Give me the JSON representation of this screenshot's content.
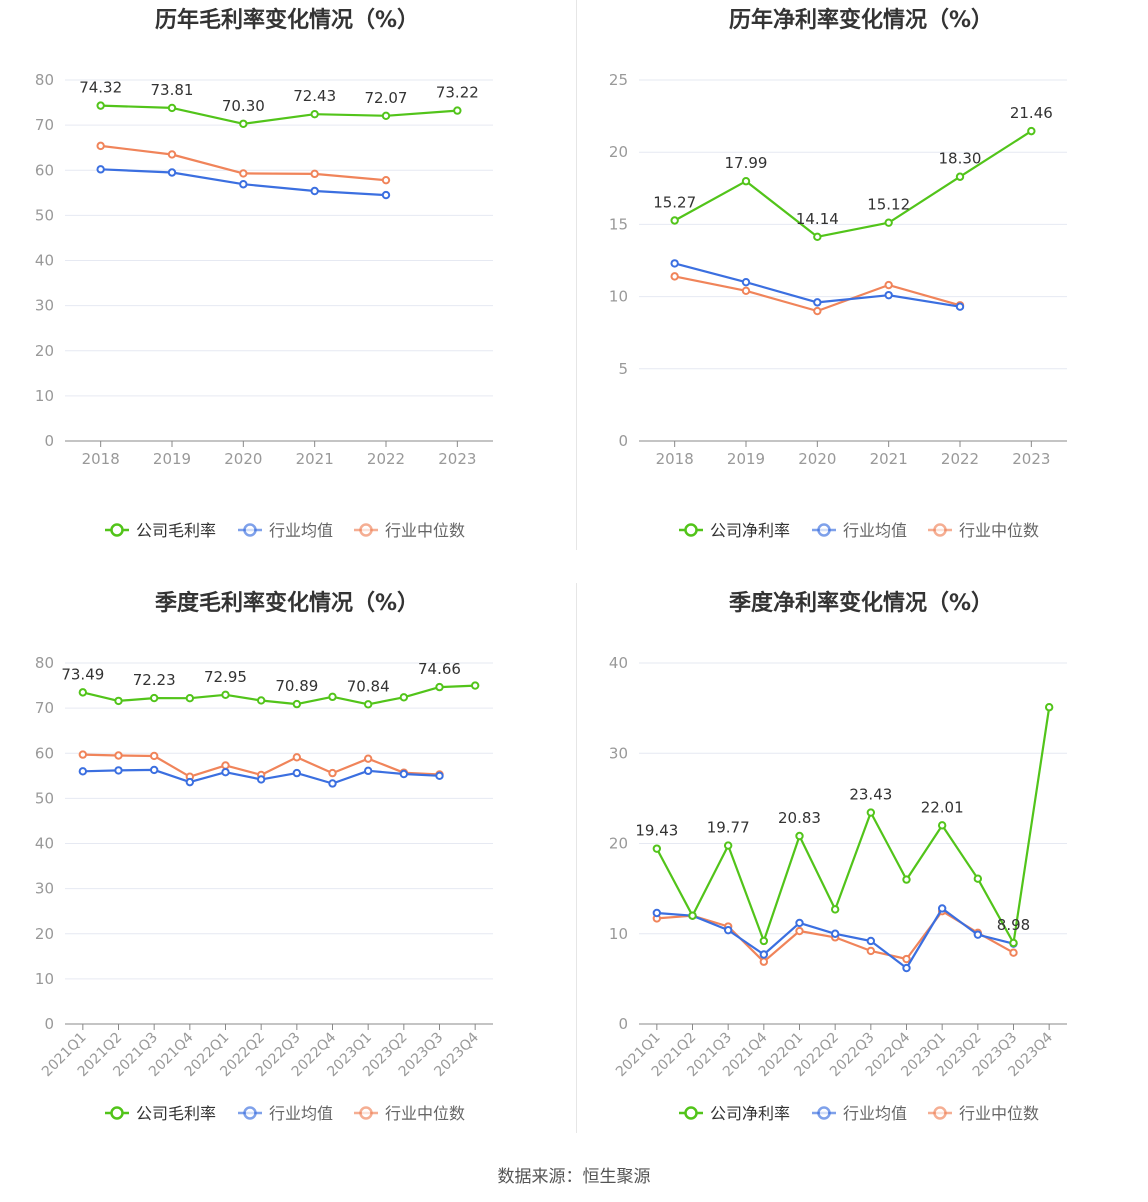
{
  "footer": {
    "source": "数据来源：恒生聚源"
  },
  "colors": {
    "company": "#52c41a",
    "average": "#3b6fe0",
    "median": "#f0845a",
    "grid": "#e6e9f2",
    "axis": "#999999",
    "label": "#333333"
  },
  "chart_data": [
    {
      "type": "line",
      "title": "历年毛利率变化情况（%）",
      "categories": [
        "2018",
        "2019",
        "2020",
        "2021",
        "2022",
        "2023"
      ],
      "ylim": [
        0,
        80
      ],
      "yticks": [
        0,
        10,
        20,
        30,
        40,
        50,
        60,
        70,
        80
      ],
      "rotate_x_labels": false,
      "grid": true,
      "legend": "bottom-center",
      "series": [
        {
          "name": "公司毛利率",
          "color": "#52c41a",
          "values": [
            74.32,
            73.81,
            70.3,
            72.43,
            72.07,
            73.22
          ],
          "labels": [
            "74.32",
            "73.81",
            "70.30",
            "72.43",
            "72.07",
            "73.22"
          ]
        },
        {
          "name": "行业均值",
          "color": "#3b6fe0",
          "values": [
            60.2,
            59.5,
            56.9,
            55.4,
            54.5,
            null
          ],
          "labels": null
        },
        {
          "name": "行业中位数",
          "color": "#f0845a",
          "values": [
            65.4,
            63.5,
            59.3,
            59.2,
            57.8,
            null
          ],
          "labels": null
        }
      ]
    },
    {
      "type": "line",
      "title": "历年净利率变化情况（%）",
      "categories": [
        "2018",
        "2019",
        "2020",
        "2021",
        "2022",
        "2023"
      ],
      "ylim": [
        0,
        25
      ],
      "yticks": [
        0,
        5,
        10,
        15,
        20,
        25
      ],
      "rotate_x_labels": false,
      "grid": true,
      "legend": "bottom-center",
      "series": [
        {
          "name": "公司净利率",
          "color": "#52c41a",
          "values": [
            15.27,
            17.99,
            14.14,
            15.12,
            18.3,
            21.46
          ],
          "labels": [
            "15.27",
            "17.99",
            "14.14",
            "15.12",
            "18.30",
            "21.46"
          ]
        },
        {
          "name": "行业均值",
          "color": "#3b6fe0",
          "values": [
            12.3,
            11.0,
            9.6,
            10.1,
            9.3,
            null
          ],
          "labels": null
        },
        {
          "name": "行业中位数",
          "color": "#f0845a",
          "values": [
            11.4,
            10.4,
            9.0,
            10.8,
            9.4,
            null
          ],
          "labels": null
        }
      ]
    },
    {
      "type": "line",
      "title": "季度毛利率变化情况（%）",
      "categories": [
        "2021Q1",
        "2021Q2",
        "2021Q3",
        "2021Q4",
        "2022Q1",
        "2022Q2",
        "2022Q3",
        "2022Q4",
        "2023Q1",
        "2023Q2",
        "2023Q3",
        "2023Q4"
      ],
      "ylim": [
        0,
        80
      ],
      "yticks": [
        0,
        10,
        20,
        30,
        40,
        50,
        60,
        70,
        80
      ],
      "rotate_x_labels": true,
      "grid": true,
      "legend": "bottom-center",
      "series": [
        {
          "name": "公司毛利率",
          "color": "#52c41a",
          "values": [
            73.49,
            71.6,
            72.23,
            72.2,
            72.95,
            71.7,
            70.89,
            72.5,
            70.84,
            72.4,
            74.66,
            75.0
          ],
          "labels": [
            "73.49",
            null,
            "72.23",
            null,
            "72.95",
            null,
            "70.89",
            null,
            "70.84",
            null,
            "74.66",
            null
          ]
        },
        {
          "name": "行业均值",
          "color": "#3b6fe0",
          "values": [
            56.0,
            56.2,
            56.3,
            53.6,
            55.8,
            54.2,
            55.6,
            53.3,
            56.1,
            55.4,
            55.0,
            null
          ],
          "labels": null
        },
        {
          "name": "行业中位数",
          "color": "#f0845a",
          "values": [
            59.7,
            59.5,
            59.4,
            54.8,
            57.3,
            55.2,
            59.1,
            55.6,
            58.8,
            55.7,
            55.3,
            null
          ],
          "labels": null
        }
      ]
    },
    {
      "type": "line",
      "title": "季度净利率变化情况（%）",
      "categories": [
        "2021Q1",
        "2021Q2",
        "2021Q3",
        "2021Q4",
        "2022Q1",
        "2022Q2",
        "2022Q3",
        "2022Q4",
        "2023Q1",
        "2023Q2",
        "2023Q3",
        "2023Q4"
      ],
      "ylim": [
        0,
        40
      ],
      "yticks": [
        0,
        10,
        20,
        30,
        40
      ],
      "rotate_x_labels": true,
      "grid": true,
      "legend": "bottom-center",
      "series": [
        {
          "name": "公司净利率",
          "color": "#52c41a",
          "values": [
            19.43,
            12.0,
            19.77,
            9.2,
            20.83,
            12.7,
            23.43,
            16.0,
            22.01,
            16.1,
            8.98,
            35.1
          ],
          "labels": [
            "19.43",
            null,
            "19.77",
            null,
            "20.83",
            null,
            "23.43",
            null,
            "22.01",
            null,
            "8.98",
            null
          ]
        },
        {
          "name": "行业均值",
          "color": "#3b6fe0",
          "values": [
            12.3,
            12.0,
            10.4,
            7.7,
            11.2,
            10.0,
            9.2,
            6.2,
            12.8,
            9.9,
            8.9,
            null
          ],
          "labels": null
        },
        {
          "name": "行业中位数",
          "color": "#f0845a",
          "values": [
            11.7,
            12.0,
            10.8,
            6.9,
            10.3,
            9.6,
            8.1,
            7.2,
            12.5,
            10.1,
            7.9,
            null
          ],
          "labels": null
        }
      ]
    }
  ]
}
